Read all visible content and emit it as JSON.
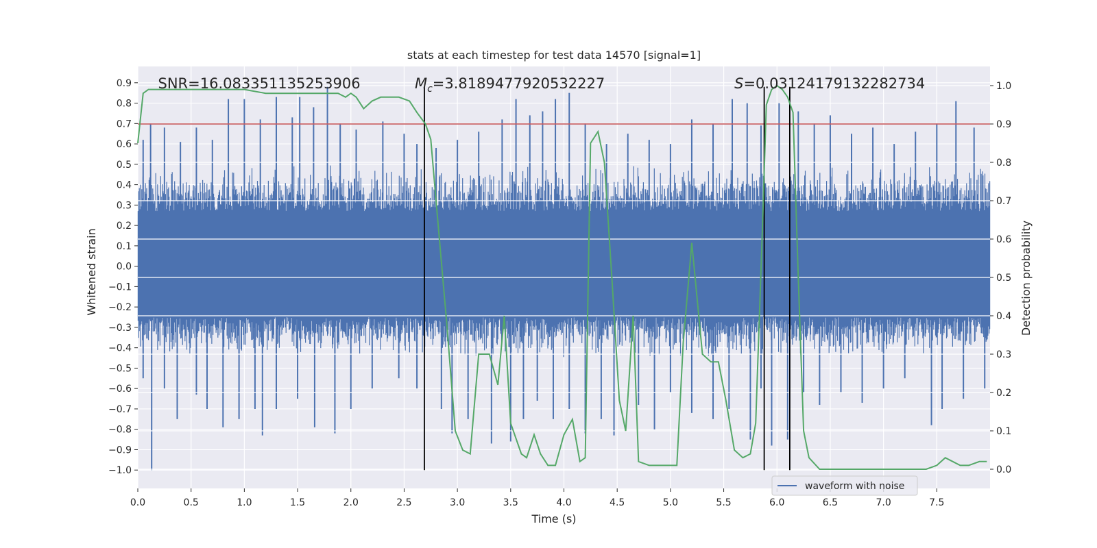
{
  "chart_data": {
    "type": "line",
    "title": "stats at each timestep for test data 14570 [signal=1]",
    "xlabel": "Time (s)",
    "ylabel_left": "Whitened strain",
    "ylabel_right": "Detection probability",
    "xlim": [
      0.0,
      8.0
    ],
    "ylim_left": [
      -1.09,
      0.98
    ],
    "ylim_right": [
      -0.05,
      1.05
    ],
    "x_ticks": [
      0.0,
      0.5,
      1.0,
      1.5,
      2.0,
      2.5,
      3.0,
      3.5,
      4.0,
      4.5,
      5.0,
      5.5,
      6.0,
      6.5,
      7.0,
      7.5
    ],
    "x_tick_labels": [
      "0.0",
      "0.5",
      "1.0",
      "1.5",
      "2.0",
      "2.5",
      "3.0",
      "3.5",
      "4.0",
      "4.5",
      "5.0",
      "5.5",
      "6.0",
      "6.5",
      "7.0",
      "7.5"
    ],
    "y_left_ticks": [
      0.9,
      0.8,
      0.7,
      0.6,
      0.5,
      0.4,
      0.3,
      0.2,
      0.1,
      0.0,
      -0.1,
      -0.2,
      -0.3,
      -0.4,
      -0.5,
      -0.6,
      -0.7,
      -0.8,
      -0.9,
      -1.0
    ],
    "y_left_tick_labels": [
      "0.9",
      "0.8",
      "0.7",
      "0.6",
      "0.5",
      "0.4",
      "0.3",
      "0.2",
      "0.1",
      "0.0",
      "−0.1",
      "−0.2",
      "−0.3",
      "−0.4",
      "−0.5",
      "−0.6",
      "−0.7",
      "−0.8",
      "−0.9",
      "−1.0"
    ],
    "y_right_ticks": [
      1.0,
      0.9,
      0.8,
      0.7,
      0.6,
      0.5,
      0.4,
      0.3,
      0.2,
      0.1,
      0.0
    ],
    "y_right_tick_labels": [
      "1.0",
      "0.9",
      "0.8",
      "0.7",
      "0.6",
      "0.5",
      "0.4",
      "0.3",
      "0.2",
      "0.1",
      "0.0"
    ],
    "threshold": {
      "value": 0.9,
      "axis": "right",
      "color": "#c44e52"
    },
    "vertical_lines_x": [
      2.69,
      5.88,
      6.12
    ],
    "vertical_lines_range_left": [
      -1.0,
      0.9
    ],
    "annotations": [
      {
        "text": "SNR=16.083351135253906",
        "x": 0.19,
        "y": 0.9,
        "axis": "left"
      },
      {
        "text_prefix": "M",
        "text_sub": "c",
        "text": "=3.8189477920532227",
        "x": 2.6,
        "y": 0.9,
        "axis": "left"
      },
      {
        "text_prefix": "S",
        "text_sub": "",
        "text": "=0.03124179132282734",
        "x": 5.6,
        "y": 0.9,
        "axis": "left"
      }
    ],
    "waveform": {
      "name": "waveform with noise",
      "color": "#4c72b0",
      "core_band": [
        -0.25,
        0.27
      ],
      "typical_extent": [
        -0.45,
        0.5
      ],
      "peaks_high": [
        [
          0.05,
          0.62
        ],
        [
          0.12,
          0.7
        ],
        [
          0.25,
          0.68
        ],
        [
          0.4,
          0.61
        ],
        [
          0.55,
          0.68
        ],
        [
          0.7,
          0.62
        ],
        [
          0.85,
          0.82
        ],
        [
          1.0,
          0.82
        ],
        [
          1.15,
          0.72
        ],
        [
          1.3,
          0.83
        ],
        [
          1.45,
          0.73
        ],
        [
          1.52,
          0.83
        ],
        [
          1.65,
          0.78
        ],
        [
          1.78,
          0.88
        ],
        [
          1.9,
          0.7
        ],
        [
          2.05,
          0.67
        ],
        [
          2.3,
          0.71
        ],
        [
          2.5,
          0.65
        ],
        [
          2.62,
          0.6
        ],
        [
          2.8,
          0.58
        ],
        [
          3.0,
          0.62
        ],
        [
          3.2,
          0.66
        ],
        [
          3.42,
          0.72
        ],
        [
          3.55,
          0.82
        ],
        [
          3.68,
          0.74
        ],
        [
          3.8,
          0.76
        ],
        [
          3.92,
          0.82
        ],
        [
          4.05,
          0.85
        ],
        [
          4.2,
          0.7
        ],
        [
          4.4,
          0.6
        ],
        [
          4.6,
          0.65
        ],
        [
          4.8,
          0.62
        ],
        [
          5.0,
          0.6
        ],
        [
          5.2,
          0.72
        ],
        [
          5.4,
          0.7
        ],
        [
          5.58,
          0.82
        ],
        [
          5.72,
          0.8
        ],
        [
          5.85,
          0.69
        ],
        [
          6.02,
          0.8
        ],
        [
          6.2,
          0.76
        ],
        [
          6.35,
          0.7
        ],
        [
          6.5,
          0.74
        ],
        [
          6.7,
          0.65
        ],
        [
          6.9,
          0.68
        ],
        [
          7.1,
          0.6
        ],
        [
          7.3,
          0.66
        ],
        [
          7.5,
          0.7
        ],
        [
          7.68,
          0.81
        ],
        [
          7.85,
          0.68
        ]
      ],
      "peaks_low": [
        [
          0.05,
          -0.55
        ],
        [
          0.13,
          -1.0
        ],
        [
          0.25,
          -0.6
        ],
        [
          0.37,
          -0.75
        ],
        [
          0.55,
          -0.63
        ],
        [
          0.65,
          -0.7
        ],
        [
          0.8,
          -0.79
        ],
        [
          0.95,
          -0.75
        ],
        [
          1.1,
          -0.7
        ],
        [
          1.17,
          -0.83
        ],
        [
          1.3,
          -0.7
        ],
        [
          1.5,
          -0.65
        ],
        [
          1.66,
          -0.79
        ],
        [
          1.85,
          -0.82
        ],
        [
          2.0,
          -0.7
        ],
        [
          2.2,
          -0.6
        ],
        [
          2.45,
          -0.55
        ],
        [
          2.62,
          -0.6
        ],
        [
          2.85,
          -0.7
        ],
        [
          2.95,
          -0.82
        ],
        [
          3.1,
          -0.75
        ],
        [
          3.32,
          -0.87
        ],
        [
          3.5,
          -0.86
        ],
        [
          3.62,
          -0.75
        ],
        [
          3.75,
          -0.66
        ],
        [
          3.9,
          -0.75
        ],
        [
          4.05,
          -0.7
        ],
        [
          4.2,
          -0.82
        ],
        [
          4.35,
          -0.75
        ],
        [
          4.47,
          -0.83
        ],
        [
          4.7,
          -0.68
        ],
        [
          4.85,
          -0.8
        ],
        [
          5.0,
          -0.62
        ],
        [
          5.2,
          -0.72
        ],
        [
          5.4,
          -0.75
        ],
        [
          5.55,
          -0.7
        ],
        [
          5.75,
          -0.85
        ],
        [
          5.85,
          -0.6
        ],
        [
          5.95,
          -0.88
        ],
        [
          6.1,
          -0.85
        ],
        [
          6.25,
          -0.62
        ],
        [
          6.4,
          -0.68
        ],
        [
          6.6,
          -0.62
        ],
        [
          6.8,
          -0.67
        ],
        [
          7.0,
          -0.6
        ],
        [
          7.2,
          -0.55
        ],
        [
          7.45,
          -0.78
        ],
        [
          7.55,
          -0.7
        ],
        [
          7.75,
          -0.65
        ],
        [
          7.95,
          -0.6
        ]
      ]
    },
    "probability": {
      "name": "detection probability",
      "color": "#55a868",
      "x": [
        0.0,
        0.05,
        0.1,
        0.2,
        0.4,
        0.6,
        0.8,
        1.0,
        1.2,
        1.4,
        1.6,
        1.8,
        1.88,
        1.95,
        2.0,
        2.05,
        2.12,
        2.2,
        2.28,
        2.35,
        2.45,
        2.55,
        2.62,
        2.7,
        2.75,
        2.8,
        2.9,
        2.98,
        3.05,
        3.12,
        3.2,
        3.3,
        3.38,
        3.44,
        3.5,
        3.6,
        3.65,
        3.72,
        3.78,
        3.85,
        3.92,
        4.0,
        4.08,
        4.15,
        4.2,
        4.25,
        4.32,
        4.38,
        4.45,
        4.52,
        4.58,
        4.65,
        4.7,
        4.8,
        5.0,
        5.06,
        5.12,
        5.2,
        5.3,
        5.38,
        5.45,
        5.52,
        5.6,
        5.68,
        5.75,
        5.8,
        5.86,
        5.9,
        5.95,
        6.0,
        6.05,
        6.1,
        6.15,
        6.2,
        6.25,
        6.3,
        6.4,
        6.6,
        6.9,
        7.1,
        7.4,
        7.5,
        7.58,
        7.65,
        7.72,
        7.8,
        7.9,
        7.97
      ],
      "y": [
        0.85,
        0.98,
        0.99,
        0.99,
        0.99,
        0.99,
        0.99,
        0.99,
        0.98,
        0.98,
        0.98,
        0.98,
        0.98,
        0.97,
        0.98,
        0.97,
        0.94,
        0.96,
        0.97,
        0.97,
        0.97,
        0.96,
        0.93,
        0.9,
        0.86,
        0.7,
        0.38,
        0.1,
        0.05,
        0.04,
        0.3,
        0.3,
        0.22,
        0.4,
        0.12,
        0.04,
        0.03,
        0.09,
        0.04,
        0.01,
        0.01,
        0.09,
        0.13,
        0.02,
        0.03,
        0.85,
        0.88,
        0.8,
        0.5,
        0.18,
        0.1,
        0.4,
        0.02,
        0.01,
        0.01,
        0.01,
        0.33,
        0.59,
        0.3,
        0.28,
        0.28,
        0.18,
        0.05,
        0.03,
        0.04,
        0.12,
        0.6,
        0.95,
        0.99,
        1.0,
        0.99,
        0.97,
        0.93,
        0.5,
        0.1,
        0.03,
        0.0,
        0.0,
        0.0,
        0.0,
        0.0,
        0.01,
        0.03,
        0.02,
        0.01,
        0.01,
        0.02,
        0.02
      ]
    },
    "legend": {
      "entries": [
        "waveform with noise"
      ],
      "placement": "lower-right"
    },
    "grid": true
  }
}
